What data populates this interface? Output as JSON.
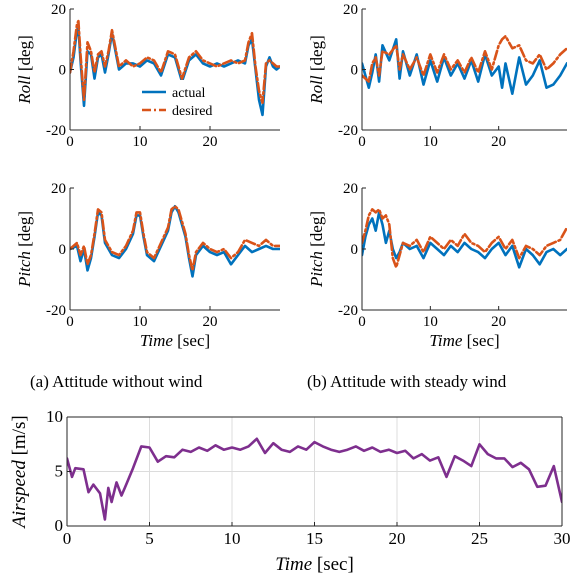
{
  "colors": {
    "actual": "#0072BD",
    "desired": "#D95319",
    "airspeed": "#7E2F8E",
    "grid": "#DCDCDC",
    "axis": "#262626"
  },
  "captions": {
    "a": "(a) Attitude without wind",
    "b": "(b) Attitude with steady wind"
  },
  "chart_data": [
    {
      "id": "roll_no_wind",
      "type": "line",
      "ylabel_italic": "Roll",
      "ylabel_unit": " [deg]",
      "xlabel_italic": "",
      "xlabel_unit": "",
      "xlim": [
        0,
        30
      ],
      "ylim": [
        -20,
        20
      ],
      "xticks": [
        0,
        10,
        20
      ],
      "yticks": [
        -20,
        0,
        20
      ],
      "xticklabels": [
        "0",
        "10",
        "20"
      ],
      "yticklabels": [
        "-20",
        "0",
        "20"
      ],
      "grid": false,
      "legend": {
        "position": "center",
        "entries": [
          "actual",
          "desired"
        ]
      },
      "series": [
        {
          "name": "actual",
          "color_key": "actual",
          "style": "solid",
          "x": [
            0,
            0.5,
            1,
            1.2,
            1.5,
            2,
            2.5,
            3,
            3.5,
            4,
            4.5,
            5,
            5.5,
            6,
            6.5,
            7,
            7.5,
            8,
            9,
            10,
            11,
            12,
            13,
            14,
            15,
            16,
            17,
            18,
            19,
            20,
            21,
            22,
            23,
            24,
            25,
            25.5,
            26,
            26.5,
            27,
            27.5,
            28,
            28.5,
            29,
            29.5,
            30
          ],
          "y": [
            -1,
            4,
            13,
            14,
            3,
            -12,
            6,
            5,
            -3,
            4,
            5,
            -1,
            5,
            12,
            6,
            0,
            1,
            2,
            2,
            1,
            3,
            2,
            -2,
            5,
            4,
            -4,
            3,
            5,
            2,
            1,
            2,
            1,
            2,
            3,
            2,
            8,
            10,
            0,
            -10,
            -15,
            1,
            4,
            1,
            0,
            1
          ]
        },
        {
          "name": "desired",
          "color_key": "desired",
          "style": "dashdot",
          "x": [
            0,
            0.5,
            1,
            1.2,
            1.5,
            2,
            2.5,
            3,
            3.5,
            4,
            4.5,
            5,
            5.5,
            6,
            6.5,
            7,
            7.5,
            8,
            9,
            10,
            11,
            12,
            13,
            14,
            15,
            16,
            17,
            18,
            19,
            20,
            21,
            22,
            23,
            24,
            25,
            25.5,
            26,
            26.5,
            27,
            27.5,
            28,
            28.5,
            29,
            29.5,
            30
          ],
          "y": [
            -1,
            6,
            15,
            16,
            5,
            -10,
            9,
            6,
            -1,
            5,
            6,
            1,
            6,
            13,
            7,
            1,
            2,
            3,
            1,
            2,
            4,
            3,
            -1,
            6,
            5,
            -3,
            4,
            6,
            3,
            2,
            1,
            2,
            3,
            2,
            3,
            9,
            12,
            1,
            -7,
            -11,
            2,
            3,
            2,
            1,
            1
          ]
        }
      ]
    },
    {
      "id": "roll_steady_wind",
      "type": "line",
      "ylabel_italic": "Roll",
      "ylabel_unit": " [deg]",
      "xlabel_italic": "",
      "xlabel_unit": "",
      "xlim": [
        0,
        30
      ],
      "ylim": [
        -20,
        20
      ],
      "xticks": [
        0,
        10,
        20
      ],
      "yticks": [
        -20,
        0,
        20
      ],
      "xticklabels": [
        "0",
        "10",
        "20"
      ],
      "yticklabels": [
        "-20",
        "0",
        "20"
      ],
      "grid": false,
      "series": [
        {
          "name": "actual",
          "color_key": "actual",
          "style": "solid",
          "x": [
            0,
            1,
            1.5,
            2,
            2.5,
            3,
            4,
            5,
            5.5,
            6,
            7,
            8,
            9,
            10,
            11,
            12,
            13,
            14,
            15,
            16,
            17,
            18,
            19,
            20,
            20.5,
            21,
            22,
            23,
            24,
            25,
            26,
            27,
            28,
            29,
            30
          ],
          "y": [
            2,
            -6,
            -1,
            5,
            -4,
            8,
            3,
            10,
            -3,
            6,
            -2,
            5,
            -5,
            3,
            -4,
            4,
            -2,
            2,
            -3,
            3,
            -4,
            5,
            -2,
            1,
            -6,
            2,
            -8,
            4,
            -5,
            -2,
            3,
            -6,
            -5,
            -2,
            2
          ]
        },
        {
          "name": "desired",
          "color_key": "desired",
          "style": "dashdot",
          "x": [
            0,
            1,
            1.5,
            2,
            2.5,
            3,
            4,
            5,
            5.5,
            6,
            7,
            8,
            9,
            10,
            11,
            12,
            13,
            14,
            15,
            16,
            17,
            18,
            19,
            20,
            20.5,
            21,
            22,
            23,
            24,
            25,
            26,
            27,
            28,
            29,
            30
          ],
          "y": [
            -2,
            -4,
            2,
            4,
            -2,
            6,
            5,
            8,
            0,
            5,
            0,
            4,
            -2,
            5,
            -1,
            5,
            0,
            3,
            -1,
            4,
            -1,
            6,
            0,
            8,
            10,
            11,
            7,
            8,
            3,
            2,
            5,
            0,
            2,
            5,
            7
          ]
        }
      ]
    },
    {
      "id": "pitch_no_wind",
      "type": "line",
      "ylabel_italic": "Pitch",
      "ylabel_unit": " [deg]",
      "xlabel_italic": "Time",
      "xlabel_unit": " [sec]",
      "xlim": [
        0,
        30
      ],
      "ylim": [
        -20,
        20
      ],
      "xticks": [
        0,
        10,
        20
      ],
      "yticks": [
        -20,
        0,
        20
      ],
      "xticklabels": [
        "0",
        "10",
        "20"
      ],
      "yticklabels": [
        "-20",
        "0",
        "20"
      ],
      "grid": false,
      "series": [
        {
          "name": "actual",
          "color_key": "actual",
          "style": "solid",
          "x": [
            0,
            1,
            1.5,
            2,
            2.5,
            3,
            3.5,
            4,
            4.5,
            5,
            6,
            7,
            8,
            9,
            9.5,
            10,
            10.5,
            11,
            12,
            13,
            14,
            14.5,
            15,
            15.5,
            16,
            16.5,
            17,
            17.5,
            18,
            19,
            20,
            21,
            22,
            23,
            24,
            25,
            26,
            27,
            28,
            29,
            30
          ],
          "y": [
            0,
            1,
            -4,
            0,
            -7,
            -3,
            4,
            12,
            11,
            2,
            -2,
            -3,
            0,
            5,
            11,
            11,
            4,
            -2,
            -4,
            1,
            6,
            12,
            14,
            12,
            8,
            4,
            -3,
            -9,
            -2,
            1,
            -1,
            -2,
            -1,
            -5,
            -2,
            1,
            -1,
            0,
            1,
            0,
            0
          ]
        },
        {
          "name": "desired",
          "color_key": "desired",
          "style": "dashdot",
          "x": [
            0,
            1,
            1.5,
            2,
            2.5,
            3,
            3.5,
            4,
            4.5,
            5,
            6,
            7,
            8,
            9,
            9.5,
            10,
            10.5,
            11,
            12,
            13,
            14,
            14.5,
            15,
            15.5,
            16,
            16.5,
            17,
            17.5,
            18,
            19,
            20,
            21,
            22,
            23,
            24,
            25,
            26,
            27,
            28,
            29,
            30
          ],
          "y": [
            0,
            2,
            -2,
            1,
            -5,
            -2,
            5,
            13,
            12,
            3,
            -1,
            -2,
            1,
            6,
            12,
            12,
            5,
            -1,
            -3,
            2,
            7,
            13,
            14,
            13,
            9,
            5,
            -2,
            -7,
            -1,
            2,
            0,
            -1,
            0,
            -3,
            -1,
            3,
            2,
            1,
            3,
            1,
            1
          ]
        }
      ]
    },
    {
      "id": "pitch_steady_wind",
      "type": "line",
      "ylabel_italic": "Pitch",
      "ylabel_unit": " [deg]",
      "xlabel_italic": "Time",
      "xlabel_unit": " [sec]",
      "xlim": [
        0,
        30
      ],
      "ylim": [
        -20,
        20
      ],
      "xticks": [
        0,
        10,
        20
      ],
      "yticks": [
        -20,
        0,
        20
      ],
      "xticklabels": [
        "0",
        "10",
        "20"
      ],
      "yticklabels": [
        "-20",
        "0",
        "20"
      ],
      "grid": false,
      "series": [
        {
          "name": "actual",
          "color_key": "actual",
          "style": "solid",
          "x": [
            0,
            0.5,
            1,
            1.5,
            2,
            2.5,
            3,
            3.5,
            4,
            4.5,
            5,
            5.5,
            6,
            7,
            8,
            9,
            10,
            11,
            12,
            13,
            14,
            15,
            16,
            17,
            18,
            19,
            20,
            21,
            22,
            23,
            24,
            25,
            26,
            27,
            28,
            29,
            30
          ],
          "y": [
            -2,
            4,
            8,
            10,
            6,
            12,
            8,
            2,
            6,
            0,
            -3,
            -1,
            2,
            0,
            1,
            -3,
            2,
            0,
            -2,
            1,
            -1,
            2,
            0,
            -1,
            -3,
            0,
            2,
            -2,
            1,
            -6,
            0,
            -2,
            -5,
            -1,
            0,
            -2,
            0
          ]
        },
        {
          "name": "desired",
          "color_key": "desired",
          "style": "dashdot",
          "x": [
            0,
            0.5,
            1,
            1.5,
            2,
            2.5,
            3,
            3.5,
            4,
            4.5,
            5,
            5.5,
            6,
            7,
            8,
            9,
            10,
            11,
            12,
            13,
            14,
            15,
            16,
            17,
            18,
            19,
            20,
            21,
            22,
            23,
            24,
            25,
            26,
            27,
            28,
            29,
            30
          ],
          "y": [
            2,
            6,
            11,
            13,
            12,
            13,
            10,
            11,
            8,
            -3,
            -6,
            -2,
            2,
            1,
            3,
            -1,
            4,
            2,
            0,
            3,
            1,
            5,
            2,
            1,
            -1,
            2,
            4,
            0,
            3,
            -3,
            1,
            0,
            -2,
            1,
            2,
            3,
            7
          ]
        }
      ]
    },
    {
      "id": "airspeed",
      "type": "line",
      "ylabel_italic": "Airspeed",
      "ylabel_unit": " [m/s]",
      "xlabel_italic": "Time",
      "xlabel_unit": " [sec]",
      "xlim": [
        0,
        30
      ],
      "ylim": [
        0,
        10
      ],
      "xticks": [
        0,
        5,
        10,
        15,
        20,
        25,
        30
      ],
      "yticks": [
        0,
        5,
        10
      ],
      "xticklabels": [
        "0",
        "5",
        "10",
        "15",
        "20",
        "25",
        "30"
      ],
      "yticklabels": [
        "0",
        "5",
        "10"
      ],
      "grid": true,
      "series": [
        {
          "name": "",
          "color_key": "airspeed",
          "style": "solid",
          "x": [
            0,
            0.3,
            0.5,
            1,
            1.3,
            1.6,
            2,
            2.3,
            2.5,
            2.7,
            3,
            3.3,
            3.5,
            4,
            4.5,
            5,
            5.5,
            6,
            6.5,
            7,
            7.5,
            8,
            8.5,
            9,
            9.5,
            10,
            10.5,
            11,
            11.5,
            12,
            12.5,
            13,
            13.5,
            14,
            14.5,
            15,
            15.5,
            16,
            16.5,
            17,
            17.5,
            18,
            18.5,
            19,
            19.5,
            20,
            20.5,
            21,
            21.5,
            22,
            22.5,
            23,
            23.5,
            24,
            24.5,
            25,
            25.5,
            26,
            26.5,
            27,
            27.5,
            28,
            28.5,
            29,
            29.5,
            30
          ],
          "y": [
            6.2,
            4.5,
            5.3,
            5.2,
            3.1,
            3.8,
            3.0,
            0.6,
            3.5,
            2.2,
            4.0,
            2.8,
            3.5,
            5.3,
            7.3,
            7.2,
            5.9,
            6.4,
            6.3,
            7.0,
            6.8,
            7.2,
            6.9,
            7.4,
            7.0,
            7.2,
            7.0,
            7.3,
            8.0,
            6.7,
            7.6,
            7.0,
            6.8,
            7.3,
            7.0,
            7.7,
            7.3,
            7.0,
            6.8,
            7.0,
            7.3,
            6.9,
            7.2,
            6.8,
            7.0,
            6.7,
            6.9,
            6.2,
            6.6,
            6.0,
            6.3,
            4.5,
            6.4,
            6.0,
            5.5,
            7.5,
            6.6,
            6.2,
            6.2,
            5.4,
            5.8,
            5.2,
            3.6,
            3.7,
            5.5,
            2.2
          ]
        }
      ]
    }
  ]
}
